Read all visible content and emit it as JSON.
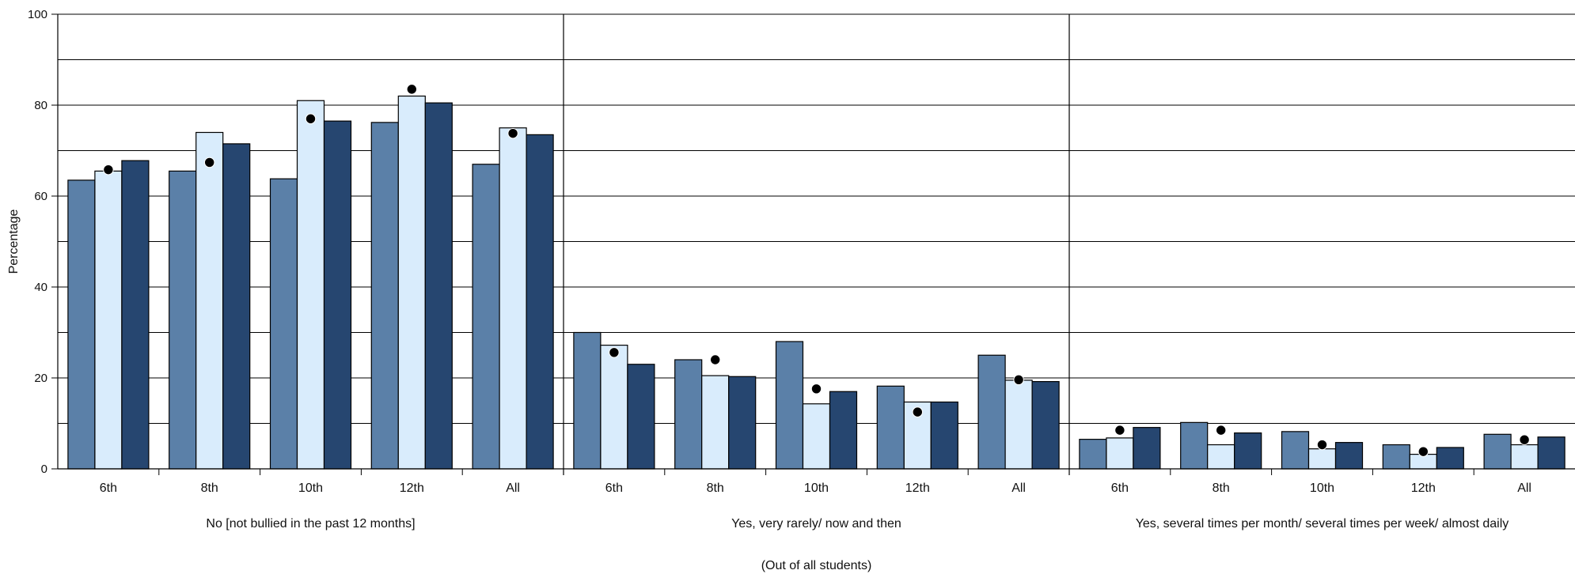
{
  "chart_data": {
    "type": "bar",
    "ylabel": "Percentage",
    "ylim": [
      0,
      100
    ],
    "yticks": [
      0,
      20,
      40,
      60,
      80,
      100
    ],
    "grid": true,
    "footer": "(Out of all students)",
    "colors": [
      "#5b80a8",
      "#d9ecfc",
      "#264670"
    ],
    "marker_color": "#000000",
    "groups": [
      {
        "label": "No [not bullied in the past 12 months]",
        "categories": [
          "6th",
          "8th",
          "10th",
          "12th",
          "All"
        ],
        "series_values": [
          [
            63.5,
            65.5,
            63.8,
            76.2,
            67.0
          ],
          [
            65.5,
            74.0,
            81.0,
            82.0,
            75.0
          ],
          [
            67.8,
            71.5,
            76.5,
            80.5,
            73.5
          ]
        ],
        "markers": [
          65.8,
          67.4,
          77.0,
          83.5,
          73.8
        ]
      },
      {
        "label": "Yes, very rarely/ now and then",
        "categories": [
          "6th",
          "8th",
          "10th",
          "12th",
          "All"
        ],
        "series_values": [
          [
            30.0,
            24.0,
            28.0,
            18.2,
            25.0
          ],
          [
            27.2,
            20.5,
            14.3,
            14.7,
            19.5
          ],
          [
            23.0,
            20.3,
            17.0,
            14.7,
            19.2
          ]
        ],
        "markers": [
          25.6,
          24.0,
          17.6,
          12.5,
          19.6
        ]
      },
      {
        "label": "Yes, several times per month/ several times per week/ almost daily",
        "categories": [
          "6th",
          "8th",
          "10th",
          "12th",
          "All"
        ],
        "series_values": [
          [
            6.5,
            10.2,
            8.2,
            5.3,
            7.6
          ],
          [
            6.8,
            5.3,
            4.4,
            3.2,
            5.3
          ],
          [
            9.1,
            7.9,
            5.8,
            4.7,
            7.0
          ]
        ],
        "markers": [
          8.5,
          8.5,
          5.3,
          3.8,
          6.4
        ]
      }
    ]
  }
}
